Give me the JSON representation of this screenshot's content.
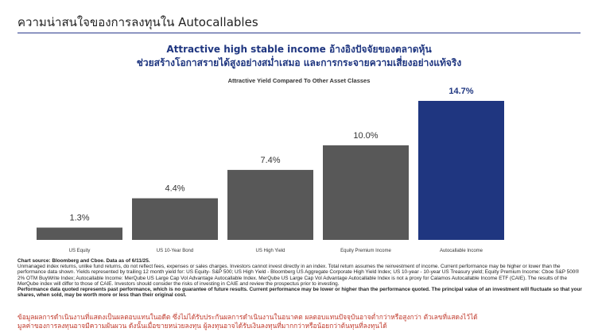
{
  "header": {
    "title": "ความน่าสนใจของการลงทุนใน Autocallables"
  },
  "headline": {
    "line1": "Attractive high stable income อ้างอิงปัจจัยของตลาดหุ้น",
    "line2": "ช่วยสร้างโอกาสรายได้สูงอย่างสม่ำเสมอ และการกระจายความเสี่ยงอย่างแท้จริง"
  },
  "colors": {
    "bar_default": "#585858",
    "bar_highlight": "#1f3680",
    "title_rule": "#2a3a8c",
    "disclaimer_text": "#c0392b"
  },
  "chart_data": {
    "type": "bar",
    "title": "Attractive Yield Compared To Other Asset Classes",
    "categories": [
      "US Equity",
      "US 10-Year Bond",
      "US High Yield",
      "Equity Premium Income",
      "Autocallable Income"
    ],
    "values": [
      1.3,
      4.4,
      7.4,
      10.0,
      14.7
    ],
    "value_labels": [
      "1.3%",
      "4.4%",
      "7.4%",
      "10.0%",
      "14.7%"
    ],
    "highlight_index": 4,
    "xlabel": "",
    "ylabel": "",
    "ylim": [
      0,
      14.7
    ],
    "grid": false,
    "legend": "none"
  },
  "source": {
    "heading": "Chart source: Bloomberg and Cboe. Data as of 6/11/25.",
    "body": "Unmanaged index returns, unlike fund returns, do not reflect fees, expenses or sales charges. Investors cannot invest directly in an index. Total return assumes the reinvestment of income. Current performance may be higher or lower than the performance data shown. Yields represented by trailing 12 month yield for: US Equity- S&P 500; US High Yield - Bloomberg US Aggregate Corporate High Yield Index; US 10-year - 10-year US Treasury yield; Equity Premium Income: Cboe S&P 500® 2% OTM BuyWrite Index; Autocallable Income: MerQube US Large Cap Vol Advantage Autocallable Index. MerQube US Large Cap Vol Advantage Autocallable Index is not a proxy for Calamos Autocallable Income ETF (CAIE). The results of the MerQube index will differ to those of CAIE. Investors should consider the risks of investing in CAIE and review the prospectus prior to investing.",
    "footer": "Performance data quoted represents past performance, which is no guarantee of future results. Current performance may be lower or higher than the performance quoted. The principal value of an investment will fluctuate so that your shares, when sold, may be worth more or less than their original cost."
  },
  "disclaimer": {
    "line1": "ข้อมูลผลการดำเนินงานที่แสดงเป็นผลตอบแทนในอดีต ซึ่งไม่ได้รับประกันผลการดำเนินงานในอนาคต ผลตอบแทนปัจจุบันอาจต่ำกว่าหรือสูงกว่า ตัวเลขที่แสดงไว้ได้",
    "line2": "มูลค่าของการลงทุนอาจมีความผันผวน ดังนั้นเมื่อขายหน่วยลงทุน ผู้ลงทุนอาจได้รับเงินลงทุนที่มากกว่าหรือน้อยกว่าต้นทุนที่ลงทุนได้"
  }
}
